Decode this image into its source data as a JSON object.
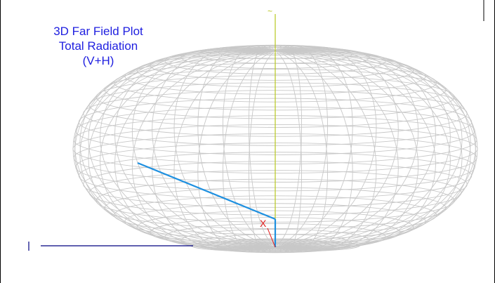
{
  "title": {
    "line1": "3D Far Field Plot",
    "line2": "Total Radiation",
    "line3": "(V+H)"
  },
  "colors": {
    "title": "#2020e0",
    "mesh": "#c8c8c8",
    "frame": "#000000",
    "z_axis": "#b8c820",
    "x_axis": "#e02020",
    "y_axis": "#1e90e0",
    "legend_line": "#000080"
  },
  "axes": {
    "x_label": "X",
    "z_label": "~"
  }
}
